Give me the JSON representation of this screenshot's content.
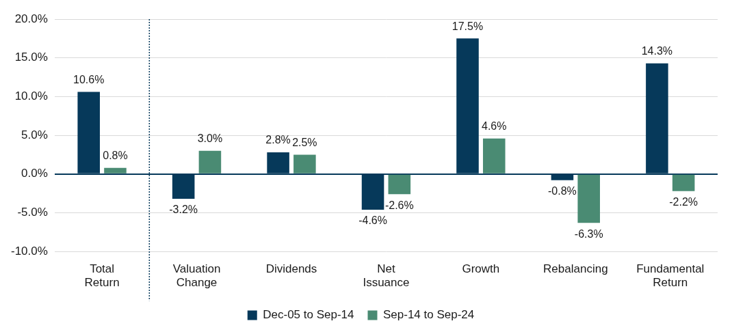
{
  "chart_data": {
    "type": "bar",
    "categories": [
      "Total Return",
      "Valuation Change",
      "Dividends",
      "Net Issuance",
      "Growth",
      "Rebalancing",
      "Fundamental Return"
    ],
    "series": [
      {
        "name": "Dec-05 to Sep-14",
        "color": "#06395a",
        "values": [
          10.6,
          -3.2,
          2.8,
          -4.6,
          17.5,
          -0.8,
          14.3
        ],
        "value_labels": [
          "10.6%",
          "-3.2%",
          "2.8%",
          "-4.6%",
          "17.5%",
          "-0.8%",
          "14.3%"
        ]
      },
      {
        "name": "Sep-14 to Sep-24",
        "color": "#4a8b73",
        "values": [
          0.8,
          3.0,
          2.5,
          -2.6,
          4.6,
          -6.3,
          -2.2
        ],
        "value_labels": [
          "0.8%",
          "3.0%",
          "2.5%",
          "-2.6%",
          "4.6%",
          "-6.3%",
          "-2.2%"
        ]
      }
    ],
    "ylim": [
      -10,
      20
    ],
    "yticks": [
      {
        "value": -10,
        "label": "-10.0%"
      },
      {
        "value": -5,
        "label": "-5.0%"
      },
      {
        "value": 0,
        "label": "0.0%"
      },
      {
        "value": 5,
        "label": "5.0%"
      },
      {
        "value": 10,
        "label": "10.0%"
      },
      {
        "value": 15,
        "label": "15.0%"
      },
      {
        "value": 20,
        "label": "20.0%"
      }
    ],
    "grid": true,
    "legend": "bottom",
    "data_labels": true
  }
}
